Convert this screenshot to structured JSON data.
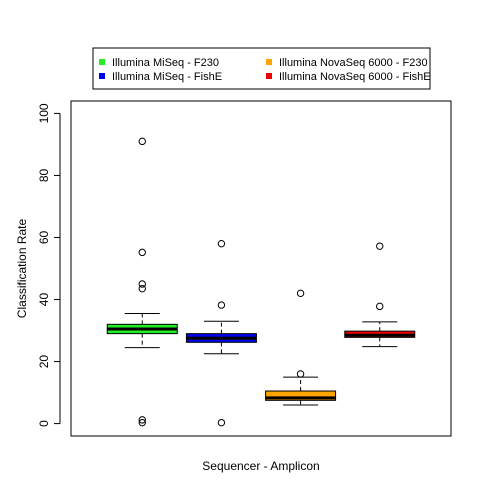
{
  "chart_data": {
    "type": "box",
    "xlabel": "Sequencer - Amplicon",
    "ylabel": "Classification Rate",
    "ylim": [
      -4,
      104
    ],
    "yticks": [
      0,
      20,
      40,
      60,
      80,
      100
    ],
    "legend": {
      "placement": "top",
      "entries": [
        {
          "label": "Illumina MiSeq - F230",
          "color": "#22ee22"
        },
        {
          "label": "Illumina NovaSeq 6000 - F230",
          "color": "#ffa500"
        },
        {
          "label": "Illumina MiSeq - FishE",
          "color": "#0000ee"
        },
        {
          "label": "Illumina NovaSeq 6000 - FishE",
          "color": "#ee0000"
        }
      ]
    },
    "series": [
      {
        "color": "#22ee22",
        "whisker_low": 24.5,
        "q1": 29,
        "median": 30.5,
        "q3": 32,
        "whisker_high": 35.5,
        "outliers": [
          91,
          55.2,
          45,
          43.5,
          1.2,
          0.3
        ]
      },
      {
        "color": "#0000ee",
        "whisker_low": 22.5,
        "q1": 26.2,
        "median": 27.5,
        "q3": 29,
        "whisker_high": 33,
        "outliers": [
          58,
          38.2,
          0.3
        ]
      },
      {
        "color": "#ffa500",
        "whisker_low": 6,
        "q1": 7.5,
        "median": 8.3,
        "q3": 10.5,
        "whisker_high": 15,
        "outliers": [
          42,
          16
        ]
      },
      {
        "color": "#ee0000",
        "whisker_low": 24.8,
        "q1": 27.8,
        "median": 28.5,
        "q3": 29.8,
        "whisker_high": 32.8,
        "outliers": [
          57.2,
          37.8
        ]
      }
    ]
  }
}
